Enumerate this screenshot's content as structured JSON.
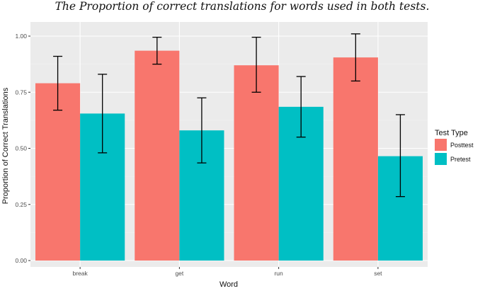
{
  "chart_data": {
    "type": "bar",
    "title": "The Proportion of correct translations for words used in both tests.",
    "xlabel": "Word",
    "ylabel": "Proportion of Correct Translations",
    "categories": [
      "break",
      "get",
      "run",
      "set"
    ],
    "ylim": [
      0,
      1.05
    ],
    "yticks": [
      "0.00",
      "0.25",
      "0.50",
      "0.75",
      "1.00"
    ],
    "grid": true,
    "legend": {
      "title": "Test Type",
      "placement": "right"
    },
    "series": [
      {
        "name": "Posttest",
        "color": "#F8766D",
        "values": [
          0.79,
          0.935,
          0.87,
          0.905
        ],
        "err_low": [
          0.67,
          0.875,
          0.75,
          0.8
        ],
        "err_high": [
          0.91,
          0.995,
          0.995,
          1.01
        ]
      },
      {
        "name": "Pretest",
        "color": "#00BFC4",
        "values": [
          0.655,
          0.58,
          0.685,
          0.465
        ],
        "err_low": [
          0.48,
          0.435,
          0.55,
          0.285
        ],
        "err_high": [
          0.83,
          0.725,
          0.82,
          0.65
        ]
      }
    ]
  }
}
